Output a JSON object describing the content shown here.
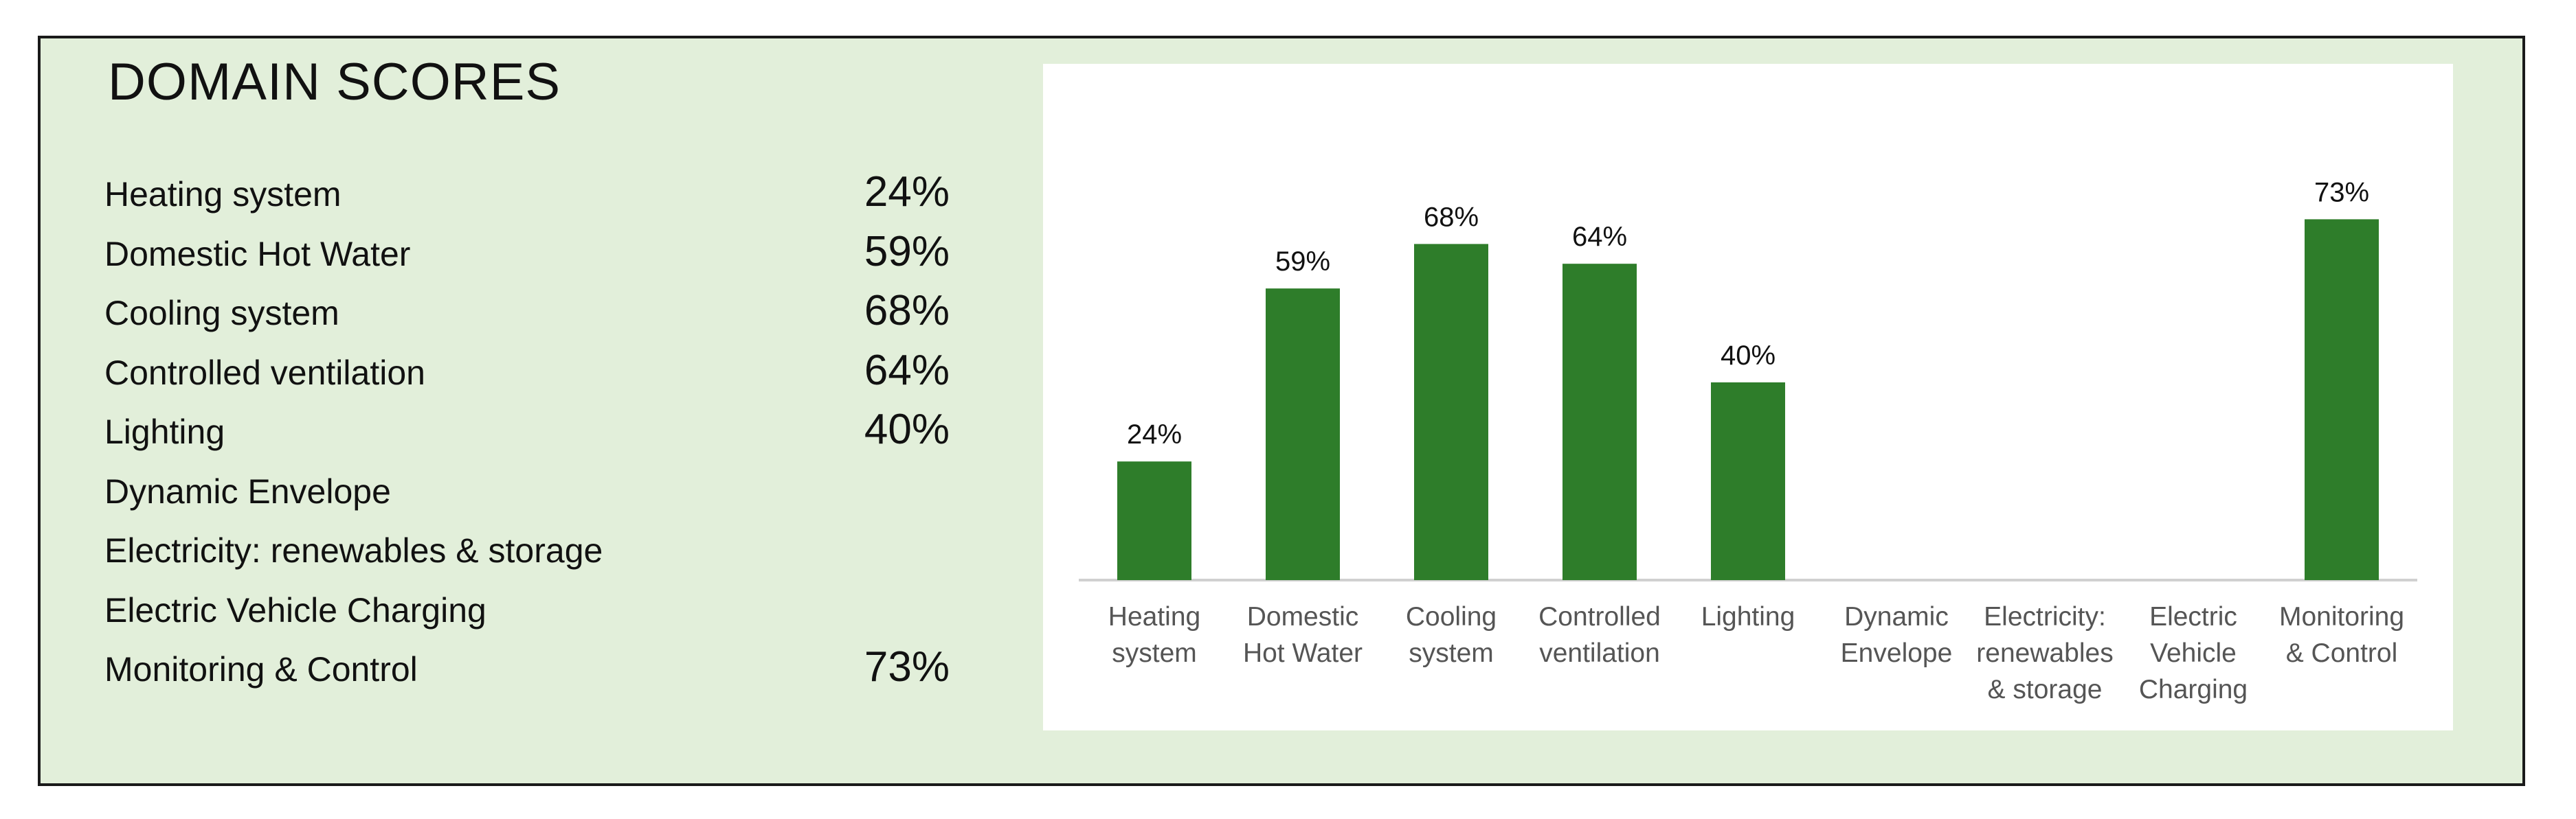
{
  "title": "DOMAIN SCORES",
  "domains": [
    {
      "label": "Heating system",
      "value": "24%"
    },
    {
      "label": "Domestic Hot Water",
      "value": "59%"
    },
    {
      "label": "Cooling system",
      "value": "68%"
    },
    {
      "label": "Controlled ventilation",
      "value": "64%"
    },
    {
      "label": "Lighting",
      "value": "40%"
    },
    {
      "label": "Dynamic Envelope",
      "value": ""
    },
    {
      "label": "Electricity: renewables & storage",
      "value": ""
    },
    {
      "label": "Electric Vehicle Charging",
      "value": ""
    },
    {
      "label": "Monitoring & Control",
      "value": "73%"
    }
  ],
  "colors": {
    "panel_background": "#e2efda",
    "bar": "#2e7d2a",
    "axis": "#d0d0d0",
    "tick_label": "#555555"
  },
  "chart_data": {
    "type": "bar",
    "categories": [
      [
        "Heating",
        "system"
      ],
      [
        "Domestic",
        "Hot Water"
      ],
      [
        "Cooling",
        "system"
      ],
      [
        "Controlled",
        "ventilation"
      ],
      [
        "Lighting"
      ],
      [
        "Dynamic",
        "Envelope"
      ],
      [
        "Electricity:",
        "renewables",
        "& storage"
      ],
      [
        "Electric",
        "Vehicle",
        "Charging"
      ],
      [
        "Monitoring",
        "& Control"
      ]
    ],
    "values": [
      24,
      59,
      68,
      64,
      40,
      null,
      null,
      null,
      73
    ],
    "data_labels": [
      "24%",
      "59%",
      "68%",
      "64%",
      "40%",
      "",
      "",
      "",
      "73%"
    ],
    "ylim": [
      0,
      100
    ],
    "grid": false,
    "legend": "none"
  }
}
